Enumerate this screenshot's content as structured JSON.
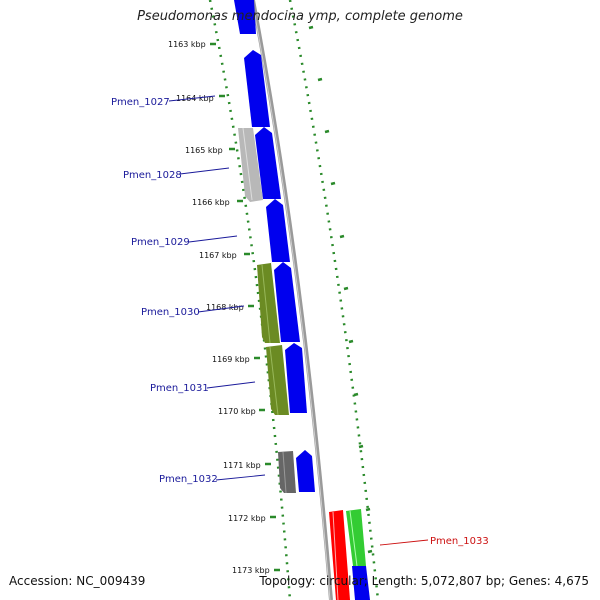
{
  "title": "Pseudomonas mendocina ymp, complete genome",
  "footer": {
    "accession": "Accession: NC_009439",
    "summary": "Topology: circular; Length: 5,072,807 bp; Genes: 4,675"
  },
  "colors": {
    "forward_gene": "#0000ee",
    "reverse_gray": "#b8b8b8",
    "olive": "#6b8b23",
    "dark_gray": "#666666",
    "red": "#ff0000",
    "green": "#33cc33",
    "dotted_track": "#2a8a2a",
    "backbone": "#888888",
    "label_blue": "#1a1a9a",
    "label_red": "#cc1111"
  },
  "ticks": [
    {
      "label": "1163 kbp"
    },
    {
      "label": "1164 kbp"
    },
    {
      "label": "1165 kbp"
    },
    {
      "label": "1166 kbp"
    },
    {
      "label": "1167 kbp"
    },
    {
      "label": "1168 kbp"
    },
    {
      "label": "1169 kbp"
    },
    {
      "label": "1170 kbp"
    },
    {
      "label": "1171 kbp"
    },
    {
      "label": "1172 kbp"
    },
    {
      "label": "1173 kbp"
    }
  ],
  "gene_labels": [
    {
      "label": "Pmen_1027"
    },
    {
      "label": "Pmen_1028"
    },
    {
      "label": "Pmen_1029"
    },
    {
      "label": "Pmen_1030"
    },
    {
      "label": "Pmen_1031"
    },
    {
      "label": "Pmen_1032"
    },
    {
      "label": "Pmen_1033"
    }
  ]
}
